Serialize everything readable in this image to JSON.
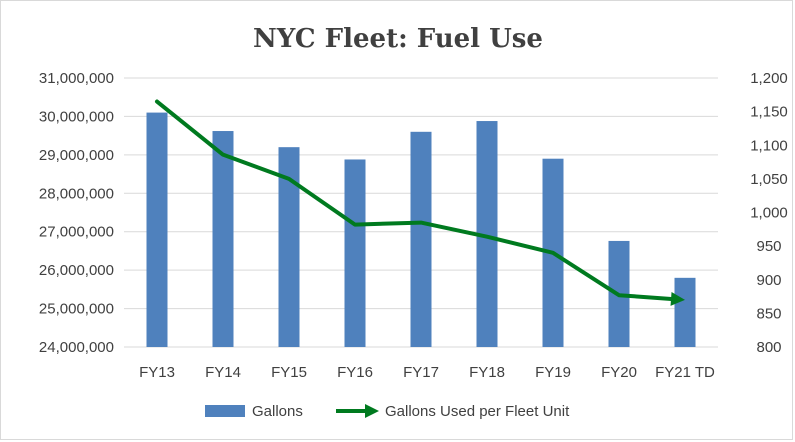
{
  "chart_data": {
    "type": "bar",
    "title": "NYC Fleet: Fuel Use",
    "categories": [
      "FY13",
      "FY14",
      "FY15",
      "FY16",
      "FY17",
      "FY18",
      "FY19",
      "FY20",
      "FY21 TD"
    ],
    "series": [
      {
        "name": "Gallons",
        "type": "bar",
        "axis": "left",
        "color": "#4f81bd",
        "values": [
          30100000,
          29620000,
          29200000,
          28880000,
          29600000,
          29880000,
          28900000,
          26760000,
          25800000
        ]
      },
      {
        "name": "Gallons Used per Fleet Unit",
        "type": "line",
        "axis": "right",
        "color": "#007a1f",
        "marker": "arrow-end",
        "values": [
          1165,
          1086,
          1050,
          982,
          985,
          964,
          940,
          877,
          870
        ]
      }
    ],
    "y_left": {
      "min": 24000000,
      "max": 31000000,
      "step": 1000000,
      "ticks": [
        "24,000,000",
        "25,000,000",
        "26,000,000",
        "27,000,000",
        "28,000,000",
        "29,000,000",
        "30,000,000",
        "31,000,000"
      ]
    },
    "y_right": {
      "min": 800,
      "max": 1200,
      "step": 50,
      "ticks": [
        "800",
        "850",
        "900",
        "950",
        "1,000",
        "1,050",
        "1,100",
        "1,150",
        "1,200"
      ]
    },
    "grid": true,
    "legend_position": "bottom"
  }
}
